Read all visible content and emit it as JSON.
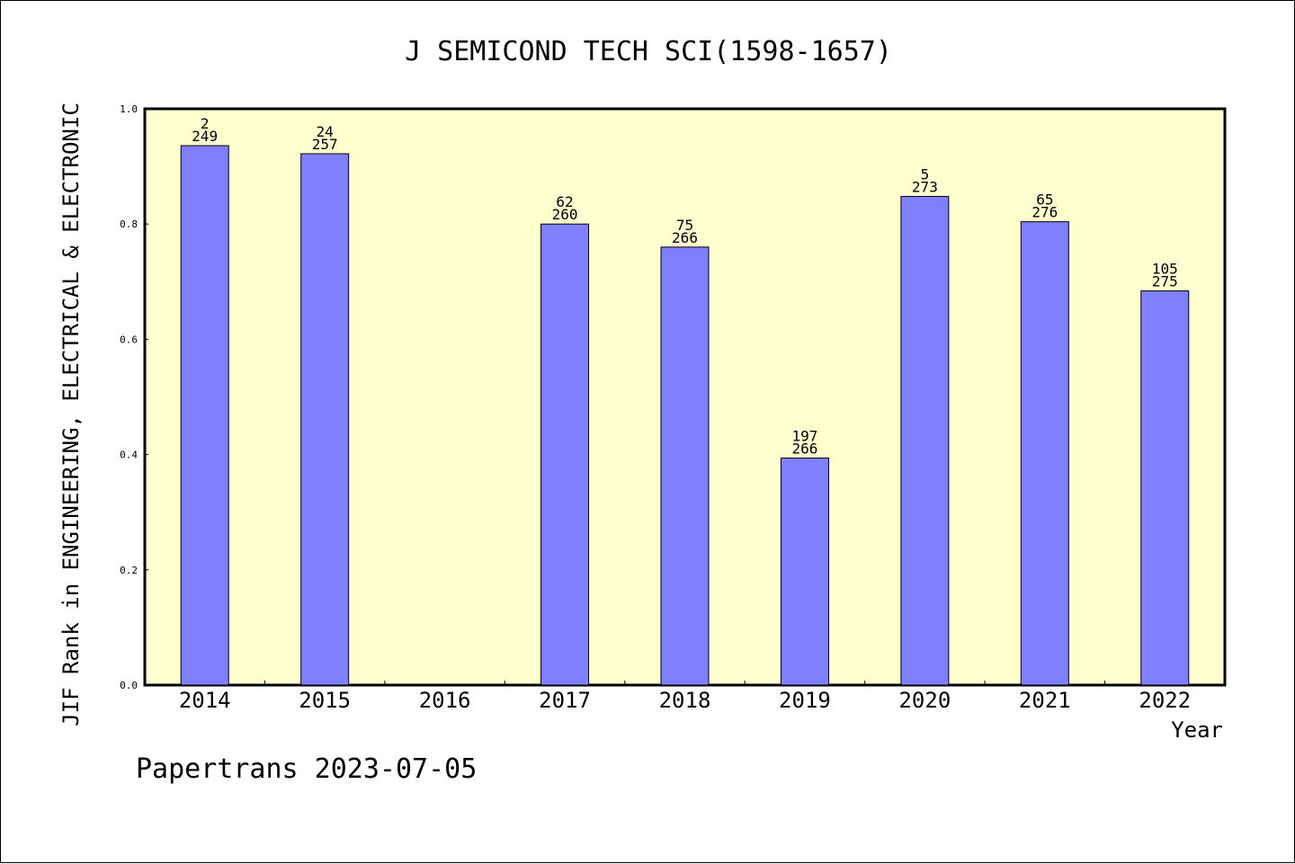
{
  "chart_data": {
    "type": "bar",
    "title": "J SEMICOND TECH SCI(1598-1657)",
    "xlabel": "Year",
    "ylabel": "JIF Rank in ENGINEERING, ELECTRICAL & ELECTRONIC",
    "categories": [
      "2014",
      "2015",
      "2016",
      "2017",
      "2018",
      "2019",
      "2020",
      "2021",
      "2022"
    ],
    "values": [
      0.936,
      0.922,
      null,
      0.8,
      0.76,
      0.394,
      0.848,
      0.804,
      0.684
    ],
    "rank": [
      "2",
      "24",
      "",
      "62",
      "75",
      "197",
      "5",
      "65",
      "105"
    ],
    "total": [
      "249",
      "257",
      "",
      "260",
      "266",
      "266",
      "273",
      "276",
      "275"
    ],
    "yticks": [
      "0.0",
      "0.2",
      "0.4",
      "0.6",
      "0.8",
      "1.0"
    ],
    "ylim": [
      0,
      1.0
    ],
    "grid": false,
    "legend": "none",
    "colors": {
      "plot_background": "#ffffd0",
      "bar_fill": "#8080ff",
      "bar_stroke": "#000000"
    }
  },
  "footer": "Papertrans 2023-07-05"
}
